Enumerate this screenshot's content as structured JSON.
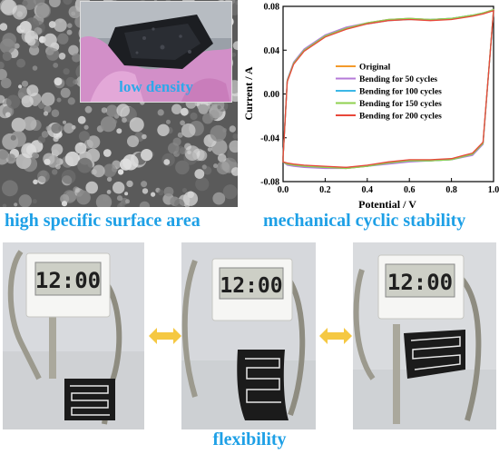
{
  "inset": {
    "label": "low density"
  },
  "captions": {
    "surface_area": "high specific surface area",
    "cyclic_stability": "mechanical cyclic stability",
    "flexibility": "flexibility"
  },
  "clock": {
    "display": "12:00"
  },
  "colors": {
    "caption_blue": "#1ea0e6",
    "arrow_yellow": "#f5c842"
  },
  "chart_data": {
    "type": "line",
    "xlabel": "Potential / V",
    "ylabel": "Current / A",
    "xlim": [
      0.0,
      1.0
    ],
    "ylim": [
      -0.08,
      0.08
    ],
    "xticks": [
      "0.0",
      "0.2",
      "0.4",
      "0.6",
      "0.8",
      "1.0"
    ],
    "yticks": [
      "-0.08",
      "-0.04",
      "0.00",
      "0.04",
      "0.08"
    ],
    "legend_position": "center-right",
    "x": [
      0.0,
      0.02,
      0.05,
      0.1,
      0.2,
      0.3,
      0.4,
      0.5,
      0.6,
      0.7,
      0.8,
      0.9,
      0.95,
      1.0
    ],
    "series": [
      {
        "name": "Original",
        "color": "#f39a2b",
        "upper": [
          -0.058,
          0.012,
          0.028,
          0.04,
          0.053,
          0.06,
          0.065,
          0.068,
          0.069,
          0.068,
          0.069,
          0.072,
          0.074,
          0.077
        ],
        "lower": [
          -0.062,
          -0.064,
          -0.065,
          -0.066,
          -0.067,
          -0.068,
          -0.066,
          -0.063,
          -0.061,
          -0.061,
          -0.06,
          -0.055,
          -0.045,
          0.077
        ]
      },
      {
        "name": "Bending for 50 cycles",
        "color": "#b57ad8",
        "upper": [
          -0.058,
          0.013,
          0.029,
          0.041,
          0.054,
          0.061,
          0.065,
          0.068,
          0.069,
          0.068,
          0.069,
          0.072,
          0.074,
          0.077
        ],
        "lower": [
          -0.062,
          -0.065,
          -0.066,
          -0.067,
          -0.068,
          -0.068,
          -0.066,
          -0.064,
          -0.062,
          -0.061,
          -0.06,
          -0.056,
          -0.046,
          0.077
        ]
      },
      {
        "name": "Bending for 100 cycles",
        "color": "#3cb7e6",
        "upper": [
          -0.058,
          0.012,
          0.028,
          0.04,
          0.053,
          0.06,
          0.064,
          0.067,
          0.068,
          0.068,
          0.069,
          0.072,
          0.074,
          0.076
        ],
        "lower": [
          -0.062,
          -0.064,
          -0.065,
          -0.066,
          -0.067,
          -0.067,
          -0.066,
          -0.063,
          -0.061,
          -0.061,
          -0.06,
          -0.055,
          -0.045,
          0.076
        ]
      },
      {
        "name": "Bending for 150 cycles",
        "color": "#8fd14f",
        "upper": [
          -0.058,
          0.012,
          0.028,
          0.04,
          0.053,
          0.06,
          0.065,
          0.068,
          0.069,
          0.068,
          0.069,
          0.072,
          0.074,
          0.077
        ],
        "lower": [
          -0.062,
          -0.064,
          -0.065,
          -0.066,
          -0.067,
          -0.068,
          -0.066,
          -0.063,
          -0.061,
          -0.061,
          -0.06,
          -0.055,
          -0.045,
          0.077
        ]
      },
      {
        "name": "Bending for 200 cycles",
        "color": "#e8473a",
        "upper": [
          -0.058,
          0.011,
          0.027,
          0.039,
          0.052,
          0.059,
          0.064,
          0.067,
          0.068,
          0.067,
          0.068,
          0.071,
          0.073,
          0.076
        ],
        "lower": [
          -0.062,
          -0.063,
          -0.064,
          -0.065,
          -0.066,
          -0.067,
          -0.065,
          -0.062,
          -0.06,
          -0.06,
          -0.059,
          -0.054,
          -0.044,
          0.076
        ]
      }
    ]
  }
}
